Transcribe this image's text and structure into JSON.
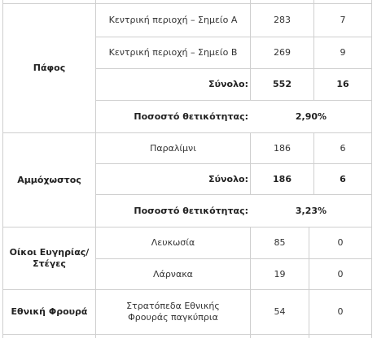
{
  "pafos": {
    "region": "Πάφος",
    "rows": [
      {
        "location": "Κεντρική περιοχή – Σημείο Α",
        "tests": "283",
        "positives": "7"
      },
      {
        "location": "Κεντρική περιοχή – Σημείο Β",
        "tests": "269",
        "positives": "9"
      }
    ],
    "total_label": "Σύνολο:",
    "total_tests": "552",
    "total_positives": "16",
    "rate_label": "Ποσοστό θετικότητας:",
    "rate_value": "2,90%"
  },
  "ammochostos": {
    "region": "Αμμόχωστος",
    "rows": [
      {
        "location": "Παραλίμνι",
        "tests": "186",
        "positives": "6"
      }
    ],
    "total_label": "Σύνολο:",
    "total_tests": "186",
    "total_positives": "6",
    "rate_label": "Ποσοστό θετικότητας:",
    "rate_value": "3,23%"
  },
  "care_homes": {
    "region": "Οίκοι Ευγηρίας/ Στέγες",
    "rows": [
      {
        "location": "Λευκωσία",
        "tests": "85",
        "positives": "0"
      },
      {
        "location": "Λάρνακα",
        "tests": "19",
        "positives": "0"
      }
    ]
  },
  "national_guard": {
    "region": "Εθνική Φρουρά",
    "rows": [
      {
        "location": "Στρατόπεδα Εθνικής Φρουράς παγκύπρια",
        "tests": "54",
        "positives": "0"
      }
    ]
  },
  "colors": {
    "border": "#cfcfcf",
    "text": "#333333"
  }
}
